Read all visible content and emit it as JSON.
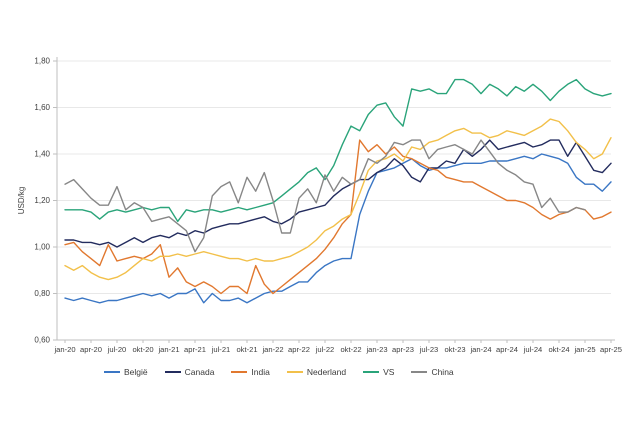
{
  "chart_data": {
    "type": "line",
    "title": "",
    "ylabel": "USD/kg",
    "ylim": [
      0.6,
      1.8
    ],
    "ytick_step": 0.2,
    "ytick_labels": [
      "0,60",
      "0,80",
      "1,00",
      "1,20",
      "1,40",
      "1,60",
      "1,80"
    ],
    "x_start": "jan-20",
    "x_end": "apr-25",
    "x_points": 64,
    "x_tick_every_months": 3,
    "x_tick_labels": [
      "jan-20",
      "apr-20",
      "jul-20",
      "okt-20",
      "jan-21",
      "apr-21",
      "jul-21",
      "okt-21",
      "jan-22",
      "apr-22",
      "jul-22",
      "okt-22",
      "jan-23",
      "apr-23",
      "jul-23",
      "okt-23",
      "jan-24",
      "apr-24",
      "jul-24",
      "okt-24",
      "jan-25",
      "apr-25"
    ],
    "grid": "horizontal",
    "legend_position": "bottom",
    "axis_color": "#bfbfbf",
    "grid_color": "#e8e8e8",
    "tick_label_color": "#404040",
    "series": [
      {
        "name": "België",
        "color": "#3a76c4",
        "values": [
          0.78,
          0.77,
          0.78,
          0.77,
          0.76,
          0.77,
          0.77,
          0.78,
          0.79,
          0.8,
          0.79,
          0.8,
          0.78,
          0.8,
          0.8,
          0.82,
          0.76,
          0.8,
          0.77,
          0.77,
          0.78,
          0.76,
          0.78,
          0.8,
          0.81,
          0.81,
          0.83,
          0.85,
          0.85,
          0.89,
          0.92,
          0.94,
          0.95,
          0.95,
          1.14,
          1.24,
          1.32,
          1.33,
          1.34,
          1.36,
          1.38,
          1.35,
          1.33,
          1.34,
          1.34,
          1.35,
          1.36,
          1.36,
          1.36,
          1.37,
          1.37,
          1.37,
          1.38,
          1.39,
          1.38,
          1.4,
          1.39,
          1.38,
          1.36,
          1.3,
          1.27,
          1.27,
          1.24,
          1.28
        ]
      },
      {
        "name": "Canada",
        "color": "#232c5e",
        "values": [
          1.03,
          1.03,
          1.02,
          1.02,
          1.01,
          1.02,
          1.0,
          1.02,
          1.04,
          1.02,
          1.04,
          1.05,
          1.04,
          1.06,
          1.05,
          1.07,
          1.06,
          1.08,
          1.09,
          1.1,
          1.1,
          1.11,
          1.12,
          1.13,
          1.11,
          1.1,
          1.12,
          1.15,
          1.16,
          1.17,
          1.18,
          1.22,
          1.25,
          1.27,
          1.29,
          1.29,
          1.32,
          1.34,
          1.38,
          1.35,
          1.3,
          1.28,
          1.34,
          1.34,
          1.37,
          1.36,
          1.42,
          1.39,
          1.42,
          1.46,
          1.42,
          1.43,
          1.44,
          1.45,
          1.43,
          1.44,
          1.46,
          1.46,
          1.39,
          1.45,
          1.39,
          1.33,
          1.32,
          1.36
        ]
      },
      {
        "name": "India",
        "color": "#e1782f",
        "values": [
          1.01,
          1.02,
          0.98,
          0.95,
          0.92,
          1.01,
          0.94,
          0.95,
          0.96,
          0.95,
          0.97,
          1.01,
          0.87,
          0.91,
          0.85,
          0.83,
          0.85,
          0.83,
          0.8,
          0.83,
          0.83,
          0.8,
          0.92,
          0.84,
          0.8,
          0.83,
          0.86,
          0.89,
          0.92,
          0.95,
          0.99,
          1.04,
          1.1,
          1.14,
          1.46,
          1.41,
          1.44,
          1.4,
          1.43,
          1.39,
          1.38,
          1.36,
          1.34,
          1.33,
          1.3,
          1.29,
          1.28,
          1.28,
          1.26,
          1.24,
          1.22,
          1.2,
          1.2,
          1.19,
          1.17,
          1.14,
          1.12,
          1.14,
          1.15,
          1.17,
          1.16,
          1.12,
          1.13,
          1.15
        ]
      },
      {
        "name": "Nederland",
        "color": "#f2c04a",
        "values": [
          0.92,
          0.9,
          0.92,
          0.89,
          0.87,
          0.86,
          0.87,
          0.89,
          0.92,
          0.95,
          0.94,
          0.96,
          0.96,
          0.97,
          0.96,
          0.97,
          0.98,
          0.97,
          0.96,
          0.95,
          0.95,
          0.94,
          0.95,
          0.94,
          0.94,
          0.95,
          0.96,
          0.98,
          1.0,
          1.03,
          1.07,
          1.09,
          1.12,
          1.14,
          1.23,
          1.33,
          1.37,
          1.38,
          1.4,
          1.37,
          1.43,
          1.42,
          1.45,
          1.46,
          1.48,
          1.5,
          1.51,
          1.49,
          1.49,
          1.47,
          1.48,
          1.5,
          1.49,
          1.48,
          1.5,
          1.52,
          1.55,
          1.54,
          1.5,
          1.45,
          1.42,
          1.38,
          1.4,
          1.47
        ]
      },
      {
        "name": "VS",
        "color": "#2aa47a",
        "values": [
          1.16,
          1.16,
          1.16,
          1.15,
          1.12,
          1.15,
          1.16,
          1.15,
          1.16,
          1.17,
          1.16,
          1.17,
          1.17,
          1.11,
          1.16,
          1.15,
          1.16,
          1.16,
          1.15,
          1.16,
          1.17,
          1.16,
          1.17,
          1.18,
          1.19,
          1.22,
          1.25,
          1.28,
          1.32,
          1.34,
          1.29,
          1.35,
          1.44,
          1.52,
          1.5,
          1.57,
          1.61,
          1.62,
          1.56,
          1.52,
          1.68,
          1.67,
          1.68,
          1.66,
          1.66,
          1.72,
          1.72,
          1.7,
          1.66,
          1.7,
          1.68,
          1.65,
          1.69,
          1.67,
          1.7,
          1.67,
          1.63,
          1.67,
          1.7,
          1.72,
          1.68,
          1.66,
          1.65,
          1.66
        ]
      },
      {
        "name": "China",
        "color": "#878787",
        "values": [
          1.27,
          1.29,
          1.25,
          1.21,
          1.18,
          1.18,
          1.26,
          1.16,
          1.19,
          1.17,
          1.11,
          1.12,
          1.13,
          1.1,
          1.07,
          0.98,
          1.04,
          1.22,
          1.26,
          1.28,
          1.19,
          1.3,
          1.24,
          1.32,
          1.2,
          1.06,
          1.06,
          1.21,
          1.25,
          1.19,
          1.31,
          1.24,
          1.3,
          1.27,
          1.29,
          1.38,
          1.36,
          1.39,
          1.45,
          1.44,
          1.46,
          1.46,
          1.38,
          1.42,
          1.43,
          1.44,
          1.42,
          1.4,
          1.46,
          1.41,
          1.36,
          1.33,
          1.31,
          1.28,
          1.27,
          1.17,
          1.21,
          1.15,
          1.15,
          1.17,
          1.16,
          null,
          null,
          null
        ]
      }
    ]
  }
}
